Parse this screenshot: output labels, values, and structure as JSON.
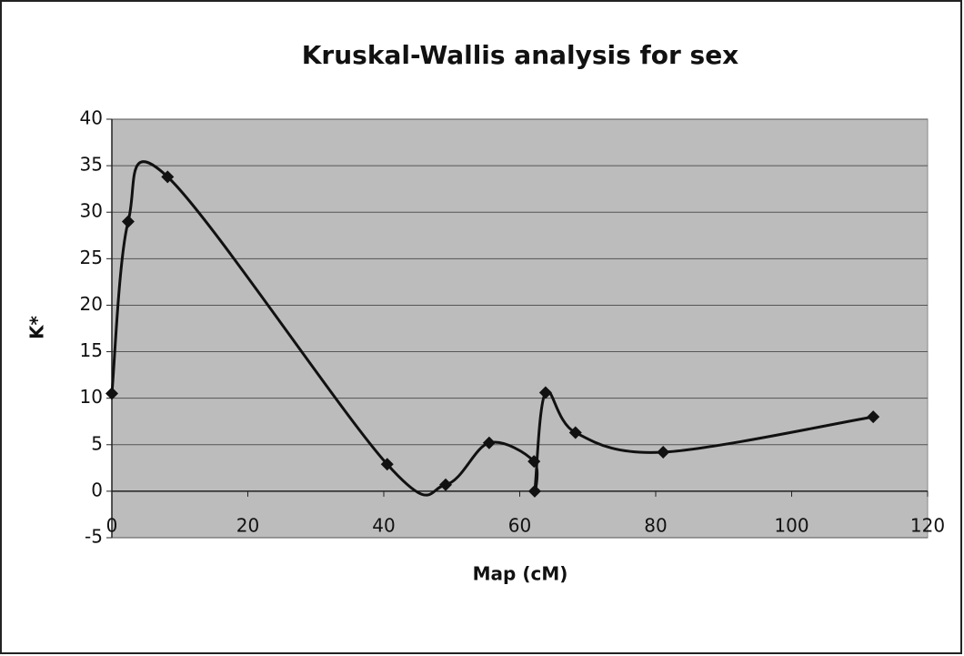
{
  "chart_data": {
    "type": "line",
    "title": "Kruskal-Wallis analysis for sex",
    "x_label": "Map (cM)",
    "y_label": "K*",
    "series": [
      {
        "name": "K*",
        "color": "#111111",
        "x": [
          0,
          2.4,
          8.2,
          40.5,
          49.1,
          55.5,
          62.1,
          62.2,
          63.8,
          68.2,
          81.1,
          112
        ],
        "values": [
          10.5,
          29,
          33.8,
          2.9,
          0.7,
          5.2,
          3.2,
          0,
          10.6,
          6.3,
          4.2,
          8
        ]
      }
    ],
    "xlim": [
      0,
      120
    ],
    "xticks": [
      0,
      20,
      40,
      60,
      80,
      100,
      120
    ],
    "ylim": [
      -5,
      40
    ],
    "yticks": [
      -5,
      0,
      5,
      10,
      15,
      20,
      25,
      30,
      35,
      40
    ],
    "grid": true,
    "smooth": true,
    "plot_background": "#bcbcbc"
  }
}
